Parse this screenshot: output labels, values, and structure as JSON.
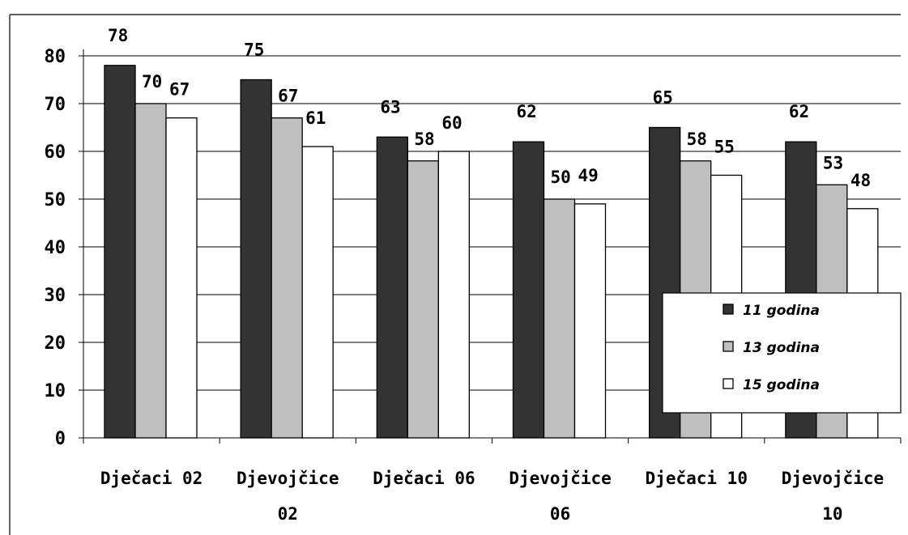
{
  "chart_data": {
    "type": "bar",
    "categories": [
      [
        "Dječaci 02"
      ],
      [
        "Djevojčice",
        "02"
      ],
      [
        "Dječaci 06"
      ],
      [
        "Djevojčice",
        "06"
      ],
      [
        "Dječaci 10"
      ],
      [
        "Djevojčice",
        "10"
      ]
    ],
    "series": [
      {
        "name": "11 godina",
        "color": "#333333",
        "values": [
          78,
          75,
          63,
          62,
          65,
          62
        ]
      },
      {
        "name": "13 godina",
        "color": "#bfbfbf",
        "values": [
          70,
          67,
          58,
          50,
          58,
          53
        ]
      },
      {
        "name": "15 godina",
        "color": "#ffffff",
        "values": [
          67,
          61,
          60,
          49,
          55,
          48
        ]
      }
    ],
    "ylim": [
      0,
      80
    ],
    "yticks": [
      0,
      10,
      20,
      30,
      40,
      50,
      60,
      70,
      80
    ],
    "grid": true,
    "legend_position": "bottom-right"
  }
}
